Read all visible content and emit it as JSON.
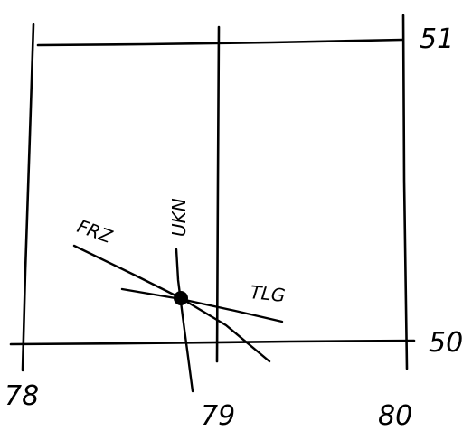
{
  "grid": {
    "longitudes": [
      "78",
      "79",
      "80"
    ],
    "latitudes": [
      "51",
      "50"
    ]
  },
  "bearing_lines": [
    {
      "station": "FRZ"
    },
    {
      "station": "UKN"
    },
    {
      "station": "TLG"
    }
  ],
  "fix": {
    "symbol": "filled-dot"
  },
  "colors": {
    "ink": "#000000",
    "background": "#ffffff"
  }
}
